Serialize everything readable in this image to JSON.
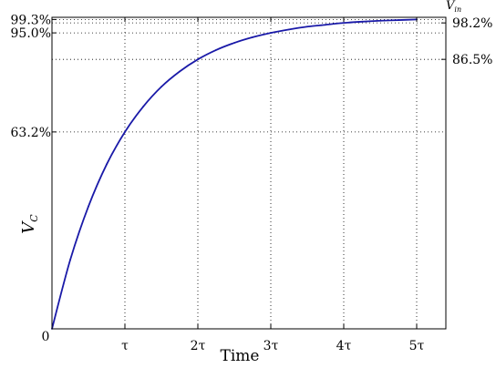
{
  "chart_data": {
    "type": "line",
    "title": "",
    "xlabel": "Time",
    "ylabel": {
      "main": "V",
      "sub": "C"
    },
    "right_axis_top_label": {
      "main": "V",
      "sub": "in"
    },
    "xlim": [
      0,
      5.4
    ],
    "ylim": [
      0,
      100
    ],
    "grid": true,
    "grid_style": "dotted",
    "x_ticks": [
      {
        "value": 0,
        "label": "0"
      },
      {
        "value": 1,
        "label": "τ"
      },
      {
        "value": 2,
        "label": "2τ"
      },
      {
        "value": 3,
        "label": "3τ"
      },
      {
        "value": 4,
        "label": "4τ"
      },
      {
        "value": 5,
        "label": "5τ"
      }
    ],
    "y_ticks_left": [
      {
        "value": 0,
        "label": "0"
      },
      {
        "value": 63.2,
        "label": "63.2%"
      },
      {
        "value": 95.0,
        "label": "95.0%"
      },
      {
        "value": 99.3,
        "label": "99.3%"
      }
    ],
    "y_ticks_right": [
      {
        "value": 86.5,
        "label": "86.5%"
      },
      {
        "value": 98.2,
        "label": "98.2%"
      }
    ],
    "series": [
      {
        "color": "#1a1aa8",
        "x": [
          0,
          0.25,
          0.5,
          0.75,
          1,
          1.25,
          1.5,
          1.75,
          2,
          2.25,
          2.5,
          2.75,
          3,
          3.25,
          3.5,
          3.75,
          4,
          4.25,
          4.5,
          4.75,
          5
        ],
        "y": [
          0,
          22.1,
          39.3,
          52.8,
          63.2,
          71.3,
          77.7,
          82.6,
          86.5,
          89.5,
          91.8,
          93.6,
          95.0,
          96.1,
          97.0,
          97.6,
          98.2,
          98.6,
          98.9,
          99.1,
          99.3
        ]
      }
    ]
  }
}
